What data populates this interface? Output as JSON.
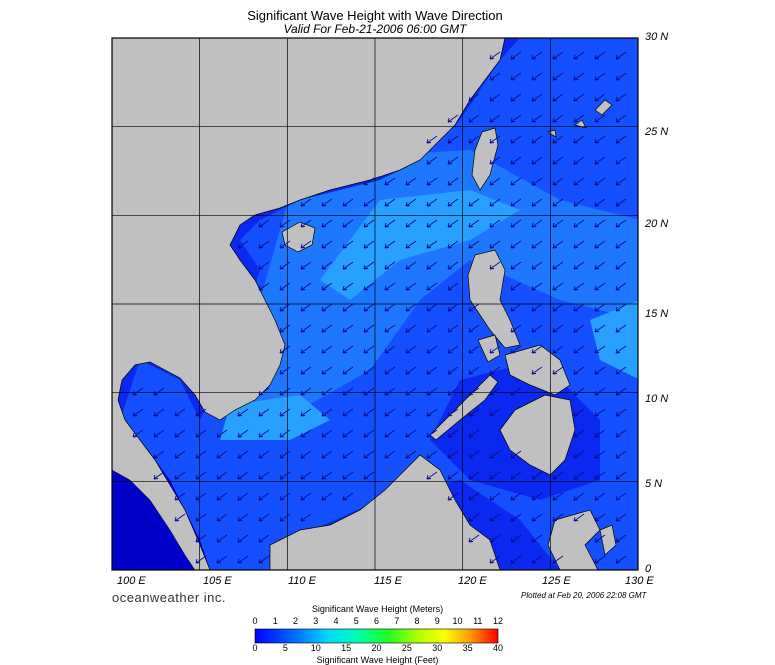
{
  "header": {
    "title": "Significant Wave Height with Wave Direction",
    "subtitle": "Valid For Feb-21-2006 06:00 GMT"
  },
  "map": {
    "lon_labels": [
      "100 E",
      "105 E",
      "110 E",
      "115 E",
      "120 E",
      "125 E",
      "130 E"
    ],
    "lat_labels": [
      "30 N",
      "25 N",
      "20 N",
      "15 N",
      "10 N",
      "5 N",
      "0"
    ],
    "lon_range": [
      100,
      130
    ],
    "lat_range": [
      0,
      30
    ],
    "land_color": "#c0c0c0",
    "sea_colors": [
      "#0000e6",
      "#0a28f0",
      "#1450ff",
      "#1e78ff",
      "#28a0ff",
      "#32d2ff"
    ],
    "arrow_direction": "from northeast toward southwest"
  },
  "footer": {
    "brand": "oceanweather inc.",
    "plotted": "Plotted at Feb 20, 2006 22:08 GMT"
  },
  "colorbar": {
    "title_top": "Significant Wave Height (Meters)",
    "title_bottom": "Significant Wave Height (Feet)",
    "meters": [
      "0",
      "1",
      "2",
      "3",
      "4",
      "5",
      "6",
      "7",
      "8",
      "9",
      "10",
      "11",
      "12"
    ],
    "feet": [
      "0",
      "5",
      "10",
      "15",
      "20",
      "25",
      "30",
      "35",
      "40"
    ],
    "colors": [
      "#0000ff",
      "#0060ff",
      "#00c0ff",
      "#00ffc0",
      "#00ff40",
      "#60ff00",
      "#c0ff00",
      "#ffff00",
      "#ffc000",
      "#ff8000",
      "#ff4000",
      "#ff0000"
    ]
  }
}
